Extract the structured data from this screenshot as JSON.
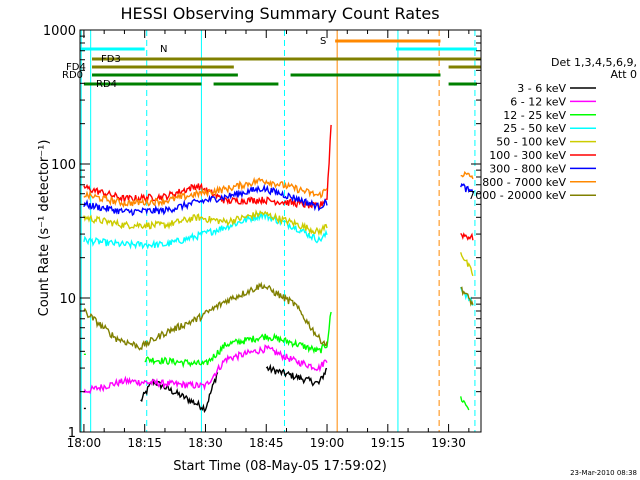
{
  "chart_data": {
    "type": "line",
    "title": "HESSI Observing Summary Count Rates",
    "xlabel": "Start Time (08-May-05 17:59:02)",
    "ylabel": "Count Rate (s⁻¹ detector⁻¹)",
    "yscale": "log",
    "ylim": [
      1,
      1000
    ],
    "xlim": [
      "17:59:02",
      "19:38:00"
    ],
    "grid": false,
    "x_ticks": [
      "18:00",
      "18:15",
      "18:30",
      "18:45",
      "19:00",
      "19:15",
      "19:30"
    ],
    "y_ticks": [
      "1",
      "10",
      "100",
      "1000"
    ],
    "legend_title": [
      "Det 1,3,4,5,6,9,",
      "Att 0"
    ],
    "legend_position": "right",
    "footer": "23-Mar-2010 08:38",
    "series": [
      {
        "name": "3 - 6 keV",
        "color": "#000000",
        "points": [
          [
            "18:00",
            1.5
          ],
          [
            "18:14",
            1.7
          ],
          [
            "18:17",
            2.4
          ],
          [
            "18:25",
            1.8
          ],
          [
            "18:30",
            1.5
          ],
          [
            "18:33",
            2.8
          ],
          [
            "18:45",
            3.0
          ],
          [
            "18:52",
            2.6
          ],
          [
            "18:58",
            2.3
          ],
          [
            "19:00",
            3.0
          ]
        ]
      },
      {
        "name": "6 - 12 keV",
        "color": "#ff00ff",
        "points": [
          [
            "18:00",
            2.0
          ],
          [
            "18:10",
            2.4
          ],
          [
            "18:20",
            2.3
          ],
          [
            "18:30",
            2.2
          ],
          [
            "18:35",
            3.5
          ],
          [
            "18:45",
            4.2
          ],
          [
            "18:52",
            3.4
          ],
          [
            "18:58",
            3.0
          ],
          [
            "19:00",
            3.5
          ]
        ]
      },
      {
        "name": "12 - 25 keV",
        "color": "#00ff00",
        "points": [
          [
            "18:00",
            3.8
          ],
          [
            "18:15",
            3.5
          ],
          [
            "18:25",
            3.3
          ],
          [
            "18:30",
            3.2
          ],
          [
            "18:35",
            4.5
          ],
          [
            "18:45",
            5.2
          ],
          [
            "18:52",
            4.6
          ],
          [
            "18:58",
            4.0
          ],
          [
            "19:00",
            4.5
          ],
          [
            "19:01",
            8.0
          ],
          [
            "19:33",
            1.8
          ],
          [
            "19:35",
            1.5
          ]
        ]
      },
      {
        "name": "25 - 50 keV",
        "color": "#00ffff",
        "points": [
          [
            "18:00",
            27
          ],
          [
            "18:10",
            25
          ],
          [
            "18:20",
            25
          ],
          [
            "18:28",
            29
          ],
          [
            "18:35",
            34
          ],
          [
            "18:44",
            42
          ],
          [
            "18:52",
            34
          ],
          [
            "18:58",
            27
          ],
          [
            "19:00",
            30
          ],
          [
            "19:33",
            12
          ],
          [
            "19:36",
            9
          ]
        ]
      },
      {
        "name": "50 - 100 keV",
        "color": "#cccc00",
        "points": [
          [
            "18:00",
            40
          ],
          [
            "18:10",
            35
          ],
          [
            "18:20",
            35
          ],
          [
            "18:28",
            40
          ],
          [
            "18:35",
            37
          ],
          [
            "18:44",
            43
          ],
          [
            "18:52",
            36
          ],
          [
            "18:58",
            31
          ],
          [
            "19:00",
            35
          ],
          [
            "19:33",
            22
          ],
          [
            "19:36",
            15
          ]
        ]
      },
      {
        "name": "100 - 300 keV",
        "color": "#ff0000",
        "points": [
          [
            "18:00",
            67
          ],
          [
            "18:10",
            55
          ],
          [
            "18:20",
            57
          ],
          [
            "18:28",
            69
          ],
          [
            "18:35",
            53
          ],
          [
            "18:44",
            54
          ],
          [
            "18:52",
            51
          ],
          [
            "18:58",
            48
          ],
          [
            "19:00",
            56
          ],
          [
            "19:01",
            200
          ],
          [
            "19:33",
            30
          ],
          [
            "19:36",
            28
          ]
        ]
      },
      {
        "name": "300 - 800 keV",
        "color": "#0000ff",
        "points": [
          [
            "18:00",
            50
          ],
          [
            "18:10",
            44
          ],
          [
            "18:20",
            45
          ],
          [
            "18:28",
            52
          ],
          [
            "18:35",
            57
          ],
          [
            "18:44",
            66
          ],
          [
            "18:52",
            56
          ],
          [
            "18:58",
            48
          ],
          [
            "19:00",
            52
          ],
          [
            "19:33",
            70
          ],
          [
            "19:36",
            60
          ]
        ]
      },
      {
        "name": "800 - 7000 keV",
        "color": "#ff8800",
        "points": [
          [
            "18:00",
            59
          ],
          [
            "18:10",
            51
          ],
          [
            "18:20",
            53
          ],
          [
            "18:28",
            60
          ],
          [
            "18:35",
            65
          ],
          [
            "18:44",
            76
          ],
          [
            "18:52",
            66
          ],
          [
            "18:58",
            58
          ],
          [
            "19:00",
            65
          ],
          [
            "19:33",
            85
          ],
          [
            "19:36",
            80
          ]
        ]
      },
      {
        "name": "7000 - 20000 keV",
        "color": "#808000",
        "points": [
          [
            "18:00",
            8
          ],
          [
            "18:08",
            5
          ],
          [
            "18:14",
            4.3
          ],
          [
            "18:20",
            5.5
          ],
          [
            "18:28",
            7
          ],
          [
            "18:35",
            9.5
          ],
          [
            "18:44",
            12.5
          ],
          [
            "18:52",
            9
          ],
          [
            "18:58",
            5
          ],
          [
            "19:00",
            4.5
          ],
          [
            "19:33",
            12
          ],
          [
            "19:36",
            9
          ]
        ]
      }
    ],
    "flag_bars": [
      {
        "name": "N",
        "color": "#00ffff",
        "segments": [
          [
            "17:59:02",
            "18:15"
          ],
          [
            "19:17",
            "19:37"
          ]
        ]
      },
      {
        "name": "S",
        "color": "#ff8800",
        "segments": [
          [
            "19:02",
            "19:28"
          ]
        ]
      },
      {
        "name": "FD3",
        "color": "#808000",
        "segments": [
          [
            "18:02",
            "19:38"
          ]
        ]
      },
      {
        "name": "FD4",
        "color": "#808000",
        "segments": [
          [
            "18:02",
            "18:37"
          ],
          [
            "19:30",
            "19:38"
          ]
        ]
      },
      {
        "name": "RD0",
        "color": "#008000",
        "segments": [
          [
            "18:02",
            "18:38"
          ],
          [
            "18:51",
            "19:28"
          ]
        ]
      },
      {
        "name": "RD4",
        "color": "#008000",
        "segments": [
          [
            "18:00",
            "18:29"
          ],
          [
            "18:32",
            "18:48"
          ],
          [
            "19:30",
            "19:37"
          ]
        ]
      }
    ],
    "vertical_markers": [
      {
        "time": "17:59:20",
        "color": "#00ffff",
        "style": "solid"
      },
      {
        "time": "18:01:40",
        "color": "#00ffff",
        "style": "solid"
      },
      {
        "time": "18:15:30",
        "color": "#00ffff",
        "style": "dashed"
      },
      {
        "time": "18:29:00",
        "color": "#00ffff",
        "style": "solid"
      },
      {
        "time": "18:49:30",
        "color": "#00ffff",
        "style": "dashed"
      },
      {
        "time": "19:02:30",
        "color": "#ff8800",
        "style": "solid"
      },
      {
        "time": "19:17:30",
        "color": "#00ffff",
        "style": "solid"
      },
      {
        "time": "19:27:40",
        "color": "#ff8800",
        "style": "dashed"
      },
      {
        "time": "19:36:30",
        "color": "#00ffff",
        "style": "dashed"
      }
    ]
  }
}
